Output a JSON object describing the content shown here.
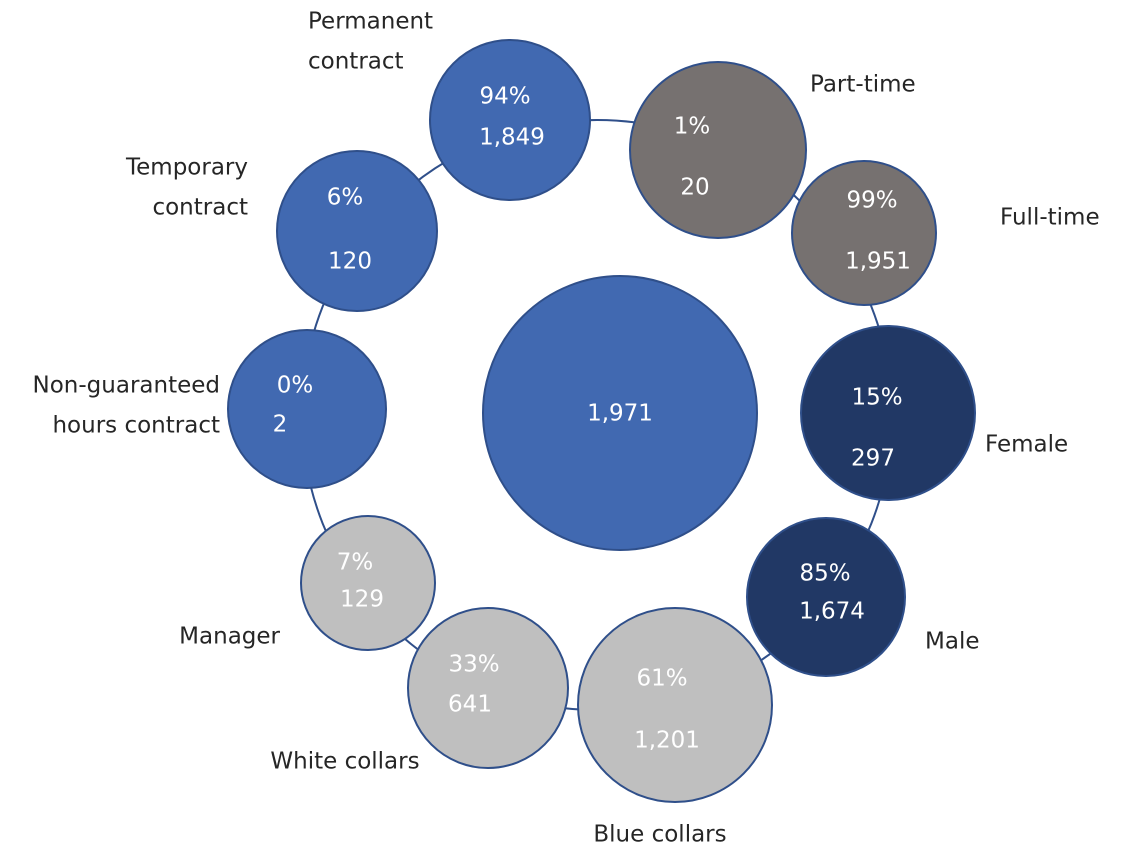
{
  "center": {
    "value": "1,971"
  },
  "nodes": [
    {
      "label": [
        "Permanent",
        "contract"
      ],
      "percent": "94%",
      "count": "1,849"
    },
    {
      "label": [
        "Part-time"
      ],
      "percent": "1%",
      "count": "20"
    },
    {
      "label": [
        "Full-time"
      ],
      "percent": "99%",
      "count": "1,951"
    },
    {
      "label": [
        "Female"
      ],
      "percent": "15%",
      "count": "297"
    },
    {
      "label": [
        "Male"
      ],
      "percent": "85%",
      "count": "1,674"
    },
    {
      "label": [
        "Blue collars"
      ],
      "percent": "61%",
      "count": "1,201"
    },
    {
      "label": [
        "White collars"
      ],
      "percent": "33%",
      "count": "641"
    },
    {
      "label": [
        "Manager"
      ],
      "percent": "7%",
      "count": "129"
    },
    {
      "label": [
        "Non-guaranteed",
        "hours contract"
      ],
      "percent": "0%",
      "count": "2"
    },
    {
      "label": [
        "Temporary",
        "contract"
      ],
      "percent": "6%",
      "count": "120"
    }
  ]
}
